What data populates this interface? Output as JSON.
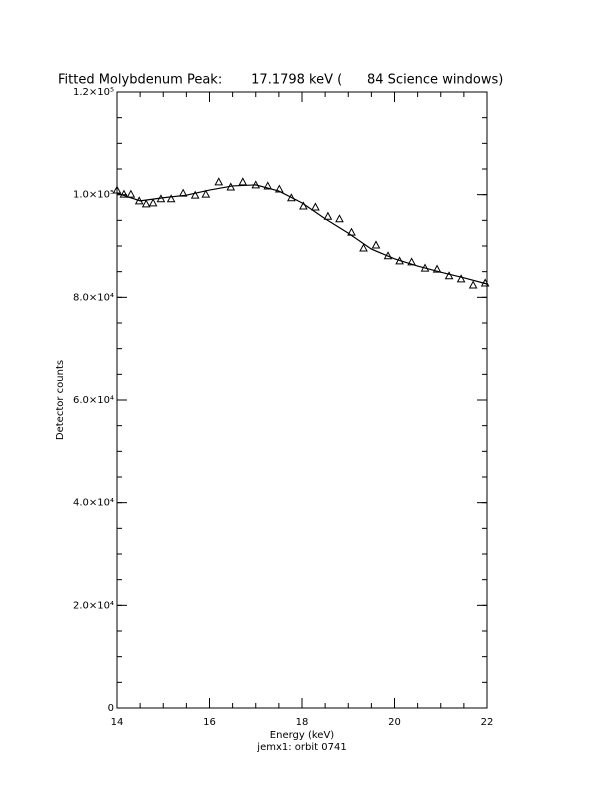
{
  "chart_data": {
    "type": "line",
    "title": "Fitted Molybdenum Peak:       17.1798 keV (      84 Science windows)",
    "xlabel": "Energy (keV)",
    "subtitle": "jemx1: orbit 0741",
    "ylabel": "Detector counts",
    "xlim": [
      14,
      22
    ],
    "xticks": [
      14,
      16,
      18,
      20,
      22
    ],
    "xminor": 0.5,
    "ylim": [
      0,
      120000
    ],
    "yticks": [
      0,
      {
        "value": 20000,
        "label": "2.0×10⁴"
      },
      {
        "value": 40000,
        "label": "4.0×10⁴"
      },
      {
        "value": 60000,
        "label": "6.0×10⁴"
      },
      {
        "value": 80000,
        "label": "8.0×10⁴"
      },
      {
        "value": 100000,
        "label": "1.0×10⁵"
      },
      {
        "value": 120000,
        "label": "1.2×10⁵"
      }
    ],
    "yminor": 5000,
    "series": [
      {
        "mode": "markers",
        "marker": "triangle",
        "color": "#000000",
        "x": [
          14.0,
          14.15,
          14.3,
          14.48,
          14.63,
          14.78,
          14.95,
          15.17,
          15.43,
          15.69,
          15.92,
          16.2,
          16.46,
          16.72,
          17.0,
          17.26,
          17.51,
          17.77,
          18.03,
          18.29,
          18.56,
          18.81,
          19.07,
          19.33,
          19.6,
          19.86,
          20.11,
          20.37,
          20.66,
          20.92,
          21.18,
          21.44,
          21.7,
          21.96
        ],
        "values": [
          100900,
          100100,
          100100,
          98800,
          98200,
          98400,
          99200,
          99200,
          100300,
          99900,
          100100,
          102500,
          101500,
          102500,
          101900,
          101700,
          101100,
          99400,
          97800,
          97600,
          95800,
          95300,
          92700,
          89600,
          90200,
          88100,
          87100,
          86900,
          85700,
          85500,
          84200,
          83600,
          82400,
          82800
        ]
      },
      {
        "mode": "line",
        "color": "#000000",
        "x": [
          14,
          14.5,
          15,
          15.5,
          16,
          16.5,
          17,
          17.5,
          18,
          18.5,
          19,
          19.5,
          20,
          20.5,
          21,
          21.5,
          22
        ],
        "values": [
          100300,
          98800,
          99400,
          99900,
          100900,
          101700,
          101900,
          100700,
          98400,
          95300,
          92500,
          89400,
          87500,
          86100,
          84900,
          83800,
          82600
        ]
      }
    ]
  }
}
